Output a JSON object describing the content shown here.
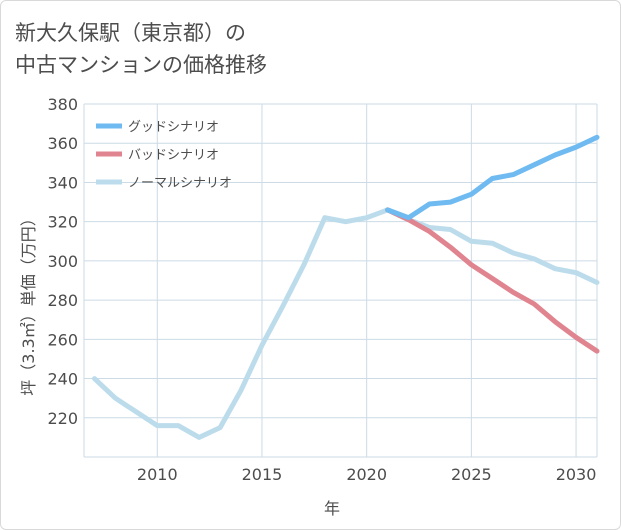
{
  "title": {
    "line1": "新大久保駅（東京都）の",
    "line2": "中古マンションの価格推移"
  },
  "colors": {
    "good": "#6fbaf0",
    "bad": "#e0848f",
    "normal": "#bcdcec",
    "grid": "#ccdbe6",
    "axis_text": "#4d4d4d"
  },
  "chart_data": {
    "type": "line",
    "xlabel": "年",
    "ylabel": "坪（3.3㎡）単価（万円）",
    "xlim": [
      2006.5,
      2031
    ],
    "ylim": [
      200,
      380
    ],
    "xticks": [
      2010,
      2015,
      2020,
      2025,
      2030
    ],
    "yticks": [
      220,
      240,
      260,
      280,
      300,
      320,
      340,
      360,
      380
    ],
    "grid": true,
    "legend_position": "top-left",
    "series": [
      {
        "name": "グッドシナリオ",
        "key": "good",
        "x": [
          2021,
          2022,
          2023,
          2024,
          2025,
          2026,
          2027,
          2028,
          2029,
          2030,
          2031
        ],
        "values": [
          326,
          322,
          329,
          330,
          334,
          342,
          344,
          349,
          354,
          358,
          363
        ]
      },
      {
        "name": "バッドシナリオ",
        "key": "bad",
        "x": [
          2021,
          2022,
          2023,
          2024,
          2025,
          2026,
          2027,
          2028,
          2029,
          2030,
          2031
        ],
        "values": [
          326,
          321,
          315,
          307,
          298,
          291,
          284,
          278,
          269,
          261,
          254
        ]
      },
      {
        "name": "ノーマルシナリオ",
        "key": "normal",
        "x": [
          2007,
          2008,
          2009,
          2010,
          2011,
          2012,
          2013,
          2014,
          2015,
          2016,
          2017,
          2018,
          2019,
          2020,
          2021,
          2022,
          2023,
          2024,
          2025,
          2026,
          2027,
          2028,
          2029,
          2030,
          2031
        ],
        "values": [
          240,
          230,
          223,
          216,
          216,
          210,
          215,
          234,
          257,
          277,
          298,
          322,
          320,
          322,
          326,
          321,
          317,
          316,
          310,
          309,
          304,
          301,
          296,
          294,
          289
        ]
      }
    ]
  }
}
